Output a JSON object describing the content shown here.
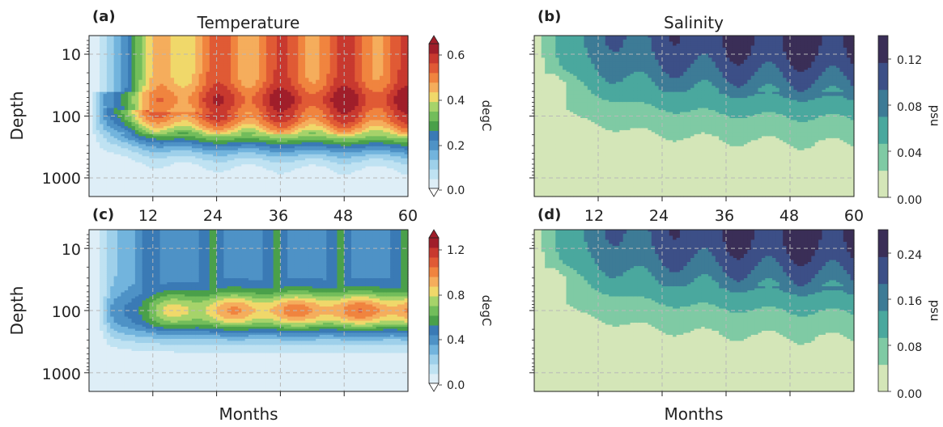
{
  "months_label": "Months",
  "depth_label": "Depth",
  "depth_ticks": [
    "10",
    "100",
    "1000"
  ],
  "month_ticks": [
    "12",
    "24",
    "36",
    "48",
    "60"
  ],
  "colors": {
    "temperature": [
      "#deeef7",
      "#bfe2f2",
      "#9ed0ea",
      "#72b4dd",
      "#4e92c6",
      "#3a7ab5",
      "#4aa04a",
      "#72bd5b",
      "#a6d36a",
      "#f0d86a",
      "#f5ad5c",
      "#f0843f",
      "#e05a35",
      "#c8392f",
      "#a01e2a"
    ],
    "salinity": [
      "#d4e6b8",
      "#7fcaa4",
      "#4aa89e",
      "#3d7b96",
      "#3c4f87",
      "#3a2e57"
    ]
  },
  "panels": [
    {
      "label": "(a)",
      "title": "Temperature",
      "colorbar_label": "degC",
      "colorbar_ticks": [
        "0.0",
        "0.2",
        "0.4",
        "0.6"
      ],
      "show_month_ticks": true
    },
    {
      "label": "(b)",
      "title": "Salinity",
      "colorbar_label": "psu",
      "colorbar_ticks": [
        "0.00",
        "0.04",
        "0.08",
        "0.12"
      ],
      "show_month_ticks": true
    },
    {
      "label": "(c)",
      "title": "",
      "colorbar_label": "degC",
      "colorbar_ticks": [
        "0.0",
        "0.4",
        "0.8",
        "1.2"
      ],
      "show_month_ticks": false
    },
    {
      "label": "(d)",
      "title": "",
      "colorbar_label": "psu",
      "colorbar_ticks": [
        "0.00",
        "0.08",
        "0.16",
        "0.24"
      ],
      "show_month_ticks": false
    }
  ],
  "chart_data": [
    {
      "type": "heatmap",
      "title": "Temperature",
      "panel": "(a)",
      "xlabel": "",
      "ylabel": "Depth",
      "xlim": [
        0,
        60
      ],
      "ylim": [
        2000,
        5
      ],
      "yscale": "log",
      "colorbar": {
        "label": "degC",
        "range": [
          0,
          0.66
        ],
        "levels": 15,
        "extend": "both"
      },
      "grid": true
    },
    {
      "type": "heatmap",
      "title": "Salinity",
      "panel": "(b)",
      "xlabel": "",
      "ylabel": "",
      "xlim": [
        0,
        60
      ],
      "ylim": [
        2000,
        5
      ],
      "yscale": "log",
      "colorbar": {
        "label": "psu",
        "range": [
          0,
          0.14
        ],
        "levels": 7
      },
      "grid": true
    },
    {
      "type": "heatmap",
      "title": "",
      "panel": "(c)",
      "xlabel": "Months",
      "ylabel": "Depth",
      "xlim": [
        0,
        60
      ],
      "ylim": [
        2000,
        5
      ],
      "yscale": "log",
      "colorbar": {
        "label": "degC",
        "range": [
          0,
          1.35
        ],
        "levels": 15,
        "extend": "both"
      },
      "grid": true
    },
    {
      "type": "heatmap",
      "title": "",
      "panel": "(d)",
      "xlabel": "Months",
      "ylabel": "",
      "xlim": [
        0,
        60
      ],
      "ylim": [
        2000,
        5
      ],
      "yscale": "log",
      "colorbar": {
        "label": "psu",
        "range": [
          0,
          0.28
        ],
        "levels": 7
      },
      "grid": true
    }
  ]
}
